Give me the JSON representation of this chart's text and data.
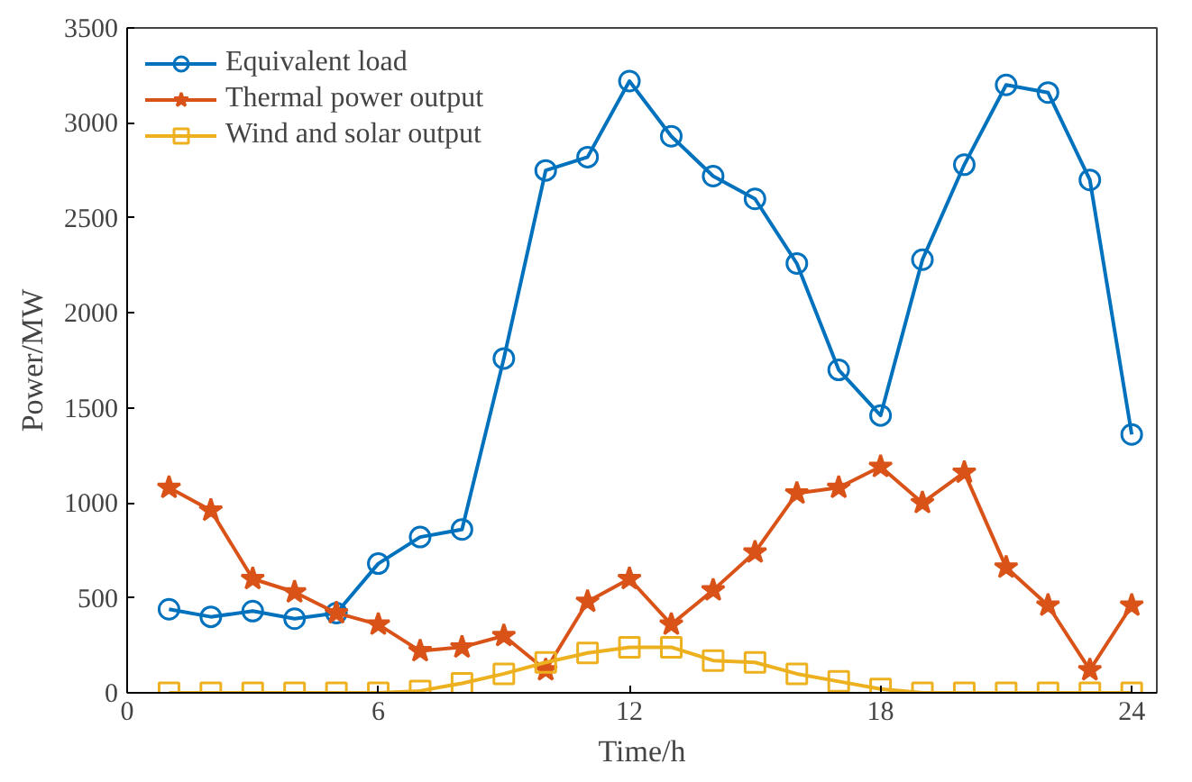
{
  "chart_data": {
    "type": "line",
    "xlabel": "Time/h",
    "ylabel": "Power/MW",
    "x": [
      1,
      2,
      3,
      4,
      5,
      6,
      7,
      8,
      9,
      10,
      11,
      12,
      13,
      14,
      15,
      16,
      17,
      18,
      19,
      20,
      21,
      22,
      23,
      24
    ],
    "xlim": [
      0,
      24.6
    ],
    "xticks": [
      0,
      6,
      12,
      18,
      24
    ],
    "ylim": [
      0,
      3500
    ],
    "yticks": [
      0,
      500,
      1000,
      1500,
      2000,
      2500,
      3000,
      3500
    ],
    "grid": false,
    "legend": "top left",
    "series": [
      {
        "name": "Equivalent load",
        "color": "#0072bd",
        "marker": "circle",
        "values": [
          440,
          400,
          430,
          390,
          420,
          680,
          820,
          860,
          1760,
          2750,
          2820,
          3220,
          2930,
          2720,
          2600,
          2260,
          1700,
          1460,
          2280,
          2780,
          3200,
          3160,
          2700,
          1360
        ]
      },
      {
        "name": "Thermal power output",
        "color": "#d95319",
        "marker": "star",
        "values": [
          1080,
          960,
          600,
          530,
          420,
          360,
          220,
          240,
          300,
          120,
          480,
          600,
          360,
          540,
          740,
          1050,
          1080,
          1190,
          1000,
          1160,
          660,
          460,
          120,
          460
        ]
      },
      {
        "name": "Wind and solar output",
        "color": "#edb120",
        "marker": "square",
        "values": [
          0,
          0,
          0,
          0,
          0,
          0,
          10,
          50,
          100,
          160,
          210,
          240,
          240,
          170,
          160,
          100,
          60,
          20,
          0,
          0,
          0,
          0,
          0,
          0
        ]
      }
    ]
  }
}
